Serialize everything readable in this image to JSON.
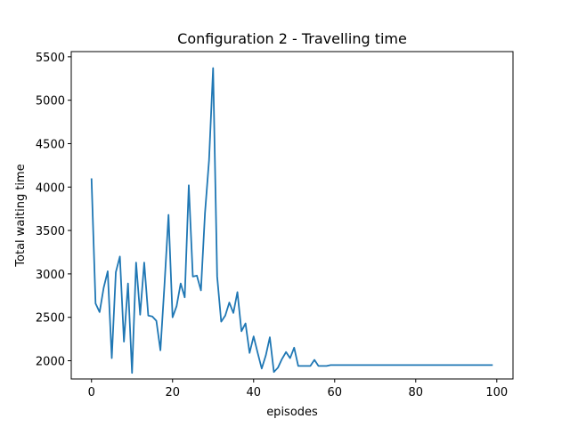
{
  "chart_data": {
    "type": "line",
    "title": "Configuration 2 - Travelling time",
    "xlabel": "episodes",
    "ylabel": "Total waiting time",
    "xlim": [
      -5,
      104
    ],
    "ylim": [
      1790,
      5560
    ],
    "xticks": [
      0,
      20,
      40,
      60,
      80,
      100
    ],
    "yticks": [
      2000,
      2500,
      3000,
      3500,
      4000,
      4500,
      5000,
      5500
    ],
    "grid": false,
    "legend": "none",
    "series": [
      {
        "color": "#1f77b4",
        "x": [
          0,
          1,
          2,
          3,
          4,
          5,
          6,
          7,
          8,
          9,
          10,
          11,
          12,
          13,
          14,
          15,
          16,
          17,
          18,
          19,
          20,
          21,
          22,
          23,
          24,
          25,
          26,
          27,
          28,
          29,
          30,
          31,
          32,
          33,
          34,
          35,
          36,
          37,
          38,
          39,
          40,
          41,
          42,
          43,
          44,
          45,
          46,
          47,
          48,
          49,
          50,
          51,
          52,
          53,
          54,
          55,
          56,
          57,
          58,
          59,
          60,
          61,
          62,
          63,
          64,
          65,
          66,
          67,
          68,
          69,
          70,
          71,
          72,
          73,
          74,
          75,
          76,
          77,
          78,
          79,
          80,
          81,
          82,
          83,
          84,
          85,
          86,
          87,
          88,
          89,
          90,
          91,
          92,
          93,
          94,
          95,
          96,
          97,
          98,
          99
        ],
        "y": [
          4100,
          2660,
          2560,
          2840,
          3030,
          2030,
          3020,
          3200,
          2220,
          2890,
          1860,
          3130,
          2530,
          3130,
          2520,
          2510,
          2460,
          2120,
          2870,
          3680,
          2500,
          2630,
          2890,
          2730,
          4020,
          2970,
          2980,
          2810,
          3700,
          4310,
          5370,
          2970,
          2450,
          2520,
          2670,
          2550,
          2790,
          2340,
          2430,
          2090,
          2280,
          2090,
          1910,
          2060,
          2270,
          1870,
          1920,
          2020,
          2100,
          2030,
          2150,
          1940,
          1940,
          1940,
          1940,
          2010,
          1940,
          1940,
          1940,
          1950,
          1950,
          1950,
          1950,
          1950,
          1950,
          1950,
          1950,
          1950,
          1950,
          1950,
          1950,
          1950,
          1950,
          1950,
          1950,
          1950,
          1950,
          1950,
          1950,
          1950,
          1950,
          1950,
          1950,
          1950,
          1950,
          1950,
          1950,
          1950,
          1950,
          1950,
          1950,
          1950,
          1950,
          1950,
          1950,
          1950,
          1950,
          1950,
          1950,
          1950
        ]
      }
    ]
  }
}
